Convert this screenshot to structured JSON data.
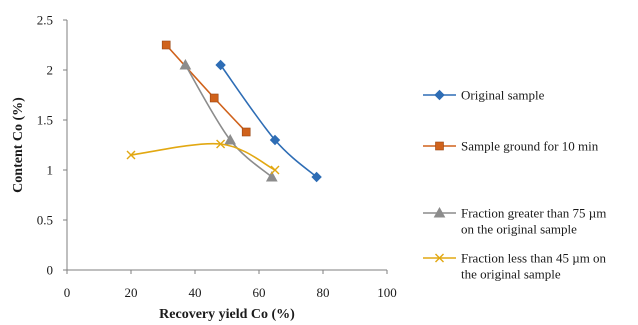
{
  "chart_data": {
    "type": "scatter",
    "xlabel": "Recovery yield Co (%)",
    "ylabel": "Content Co (%)",
    "xlim": [
      0,
      100
    ],
    "ylim": [
      0,
      2.5
    ],
    "x_ticks": [
      "0",
      "20",
      "40",
      "60",
      "80",
      "100"
    ],
    "y_ticks": [
      "0",
      "0.5",
      "1",
      "1.5",
      "2",
      "2.5"
    ],
    "grid": false,
    "legend_position": "right",
    "series": [
      {
        "name": "Original sample",
        "color": "#2e6db5",
        "marker": "diamond",
        "legend_lines": [
          "Original sample"
        ],
        "points": [
          [
            48,
            2.05
          ],
          [
            65,
            1.3
          ],
          [
            78,
            0.93
          ]
        ]
      },
      {
        "name": "Sample ground for 10 min",
        "color": "#d0621b",
        "marker": "square",
        "legend_lines": [
          "Sample ground for 10 min"
        ],
        "points": [
          [
            31,
            2.25
          ],
          [
            46,
            1.72
          ],
          [
            56,
            1.38
          ]
        ]
      },
      {
        "name": "Fraction greater than 75 µm on the original sample",
        "color": "#8c8c8c",
        "marker": "triangle",
        "legend_lines": [
          "Fraction greater than 75 µm",
          "on the original sample"
        ],
        "points": [
          [
            37,
            2.05
          ],
          [
            51,
            1.3
          ],
          [
            64,
            0.93
          ]
        ]
      },
      {
        "name": "Fraction less than 45 µm on the original sample",
        "color": "#e2a812",
        "marker": "x",
        "legend_lines": [
          "Fraction less than 45 µm on",
          "the original sample"
        ],
        "points": [
          [
            20,
            1.15
          ],
          [
            48,
            1.26
          ],
          [
            65,
            1.0
          ]
        ]
      }
    ]
  }
}
